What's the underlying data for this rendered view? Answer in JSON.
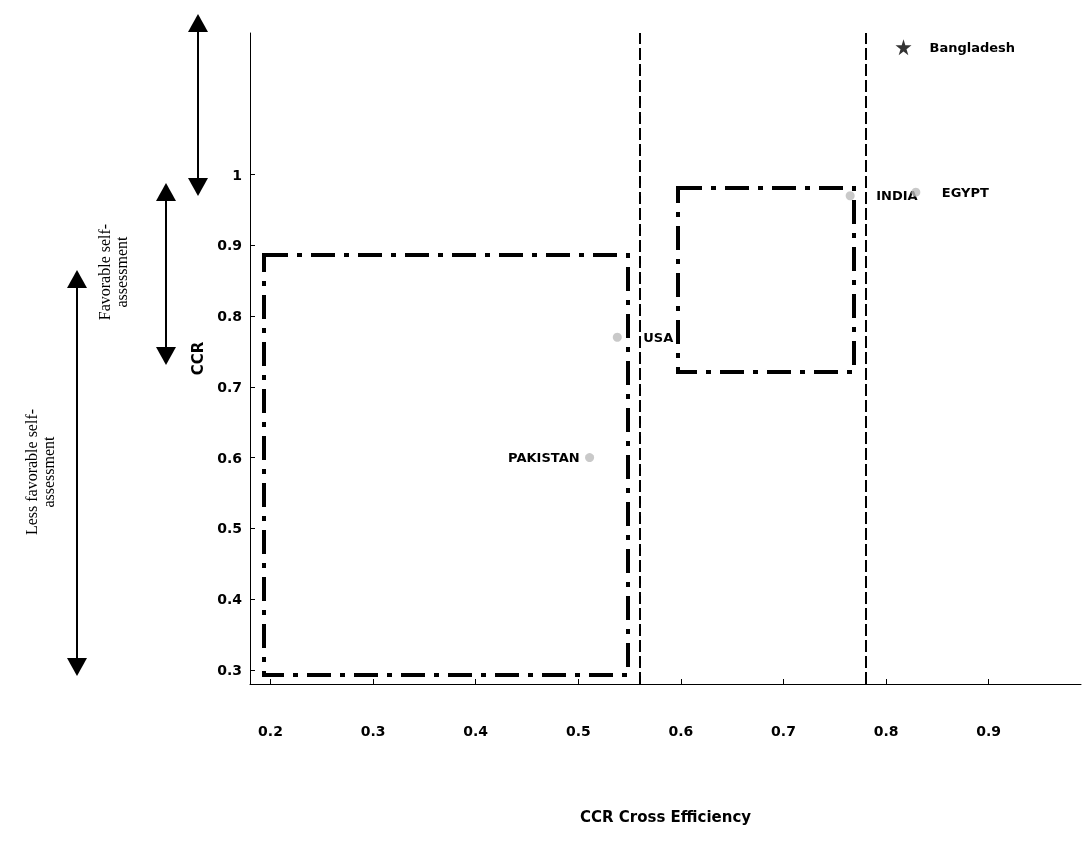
{
  "chart_data": {
    "type": "scatter",
    "xlabel": "CCR Cross Efficiency",
    "ylabel": "CCR",
    "xlim": [
      0.18,
      0.99
    ],
    "xticks": [
      0.2,
      0.3,
      0.4,
      0.5,
      0.6,
      0.7,
      0.8,
      0.9
    ],
    "ylim": [
      0.28,
      1.2
    ],
    "yticks": [
      0.3,
      0.4,
      0.5,
      0.6,
      0.7,
      0.8,
      0.9,
      1
    ],
    "series": [
      {
        "type": "scatter",
        "marker": "star",
        "color": "#000000",
        "x": [
          0.817
        ],
        "values": [
          1.18
        ]
      },
      {
        "type": "scatter",
        "marker": "circle",
        "color": "#bbbbbb",
        "x": [
          0.829,
          0.765,
          0.538,
          0.511
        ],
        "values": [
          0.975,
          0.97,
          0.77,
          0.6
        ]
      }
    ],
    "ref_lines": [
      {
        "axis": "x",
        "value": 0.558,
        "color": "#000000",
        "line_style": "dashed"
      },
      {
        "axis": "x",
        "value": 0.783,
        "color": "#000000",
        "line_style": "dashed"
      }
    ],
    "annotations": [
      "Favorable self-assessment",
      "Less favorable self-assessment",
      {
        "text": "Bangladesh",
        "x": 0.817,
        "y": 1.18
      },
      {
        "text": "EGYPT",
        "x": 0.829,
        "y": 0.975
      },
      {
        "text": "INDIA",
        "x": 0.765,
        "y": 0.97
      },
      {
        "text": "USA",
        "x": 0.538,
        "y": 0.77
      },
      {
        "text": "PAKISTAN",
        "x": 0.511,
        "y": 0.6
      }
    ]
  }
}
